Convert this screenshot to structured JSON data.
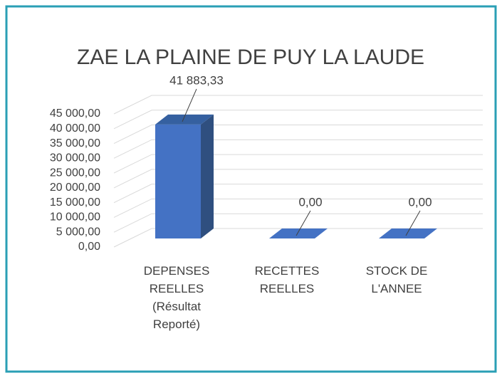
{
  "chart_data": {
    "type": "bar3d",
    "title": "ZAE LA PLAINE DE PUY LA LAUDE",
    "categories": [
      "DEPENSES REELLES (Résultat Reporté)",
      "RECETTES REELLES",
      "STOCK DE L'ANNEE"
    ],
    "values": [
      41883.33,
      0,
      0
    ],
    "value_labels": [
      "41 883,33",
      "0,00",
      "0,00"
    ],
    "color": "#4472c4",
    "ylim": [
      0,
      45000
    ],
    "yticks": [
      {
        "value": 0,
        "label": "0,00"
      },
      {
        "value": 5000,
        "label": "5 000,00"
      },
      {
        "value": 10000,
        "label": "10 000,00"
      },
      {
        "value": 15000,
        "label": "15 000,00"
      },
      {
        "value": 20000,
        "label": "20 000,00"
      },
      {
        "value": 25000,
        "label": "25 000,00"
      },
      {
        "value": 30000,
        "label": "30 000,00"
      },
      {
        "value": 35000,
        "label": "35 000,00"
      },
      {
        "value": 40000,
        "label": "40 000,00"
      },
      {
        "value": 45000,
        "label": "45 000,00"
      }
    ],
    "grid": true
  }
}
